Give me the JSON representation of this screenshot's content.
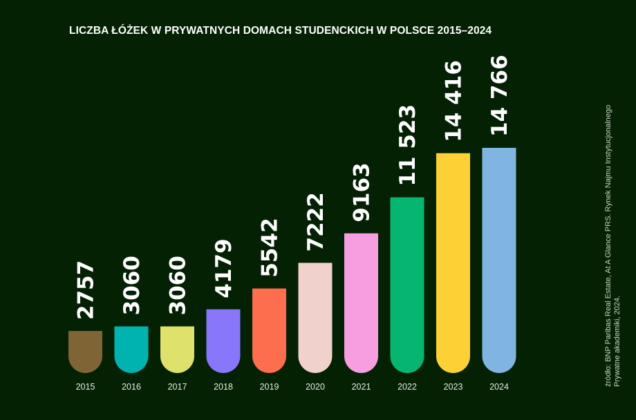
{
  "chart_data": {
    "type": "bar",
    "title": "LICZBA ŁÓŻEK W PRYWATNYCH DOMACH STUDENCKICH W POLSCE 2015–2024",
    "categories": [
      "2015",
      "2016",
      "2017",
      "2018",
      "2019",
      "2020",
      "2021",
      "2022",
      "2023",
      "2024"
    ],
    "values": [
      2757,
      3060,
      3060,
      4179,
      5542,
      7222,
      9163,
      11523,
      14416,
      14766
    ],
    "value_labels": [
      "2757",
      "3060",
      "3060",
      "4179",
      "5542",
      "7222",
      "9163",
      "11 523",
      "14 416",
      "14 766"
    ],
    "colors": [
      "#7f6535",
      "#00b2b0",
      "#dfe26a",
      "#8977fb",
      "#fd6e4f",
      "#f0d1cc",
      "#f79ee0",
      "#06b56f",
      "#fdd136",
      "#80b5e2"
    ],
    "xlabel": "",
    "ylabel": "",
    "ylim": [
      0,
      14766
    ],
    "grid": false
  },
  "source_lines": [
    "źródło: BNP Paribas Real Estate, At A Glance PRS. Rynek Najmu Instytucjonalnego",
    "Prywatne akademiki, 2024."
  ]
}
